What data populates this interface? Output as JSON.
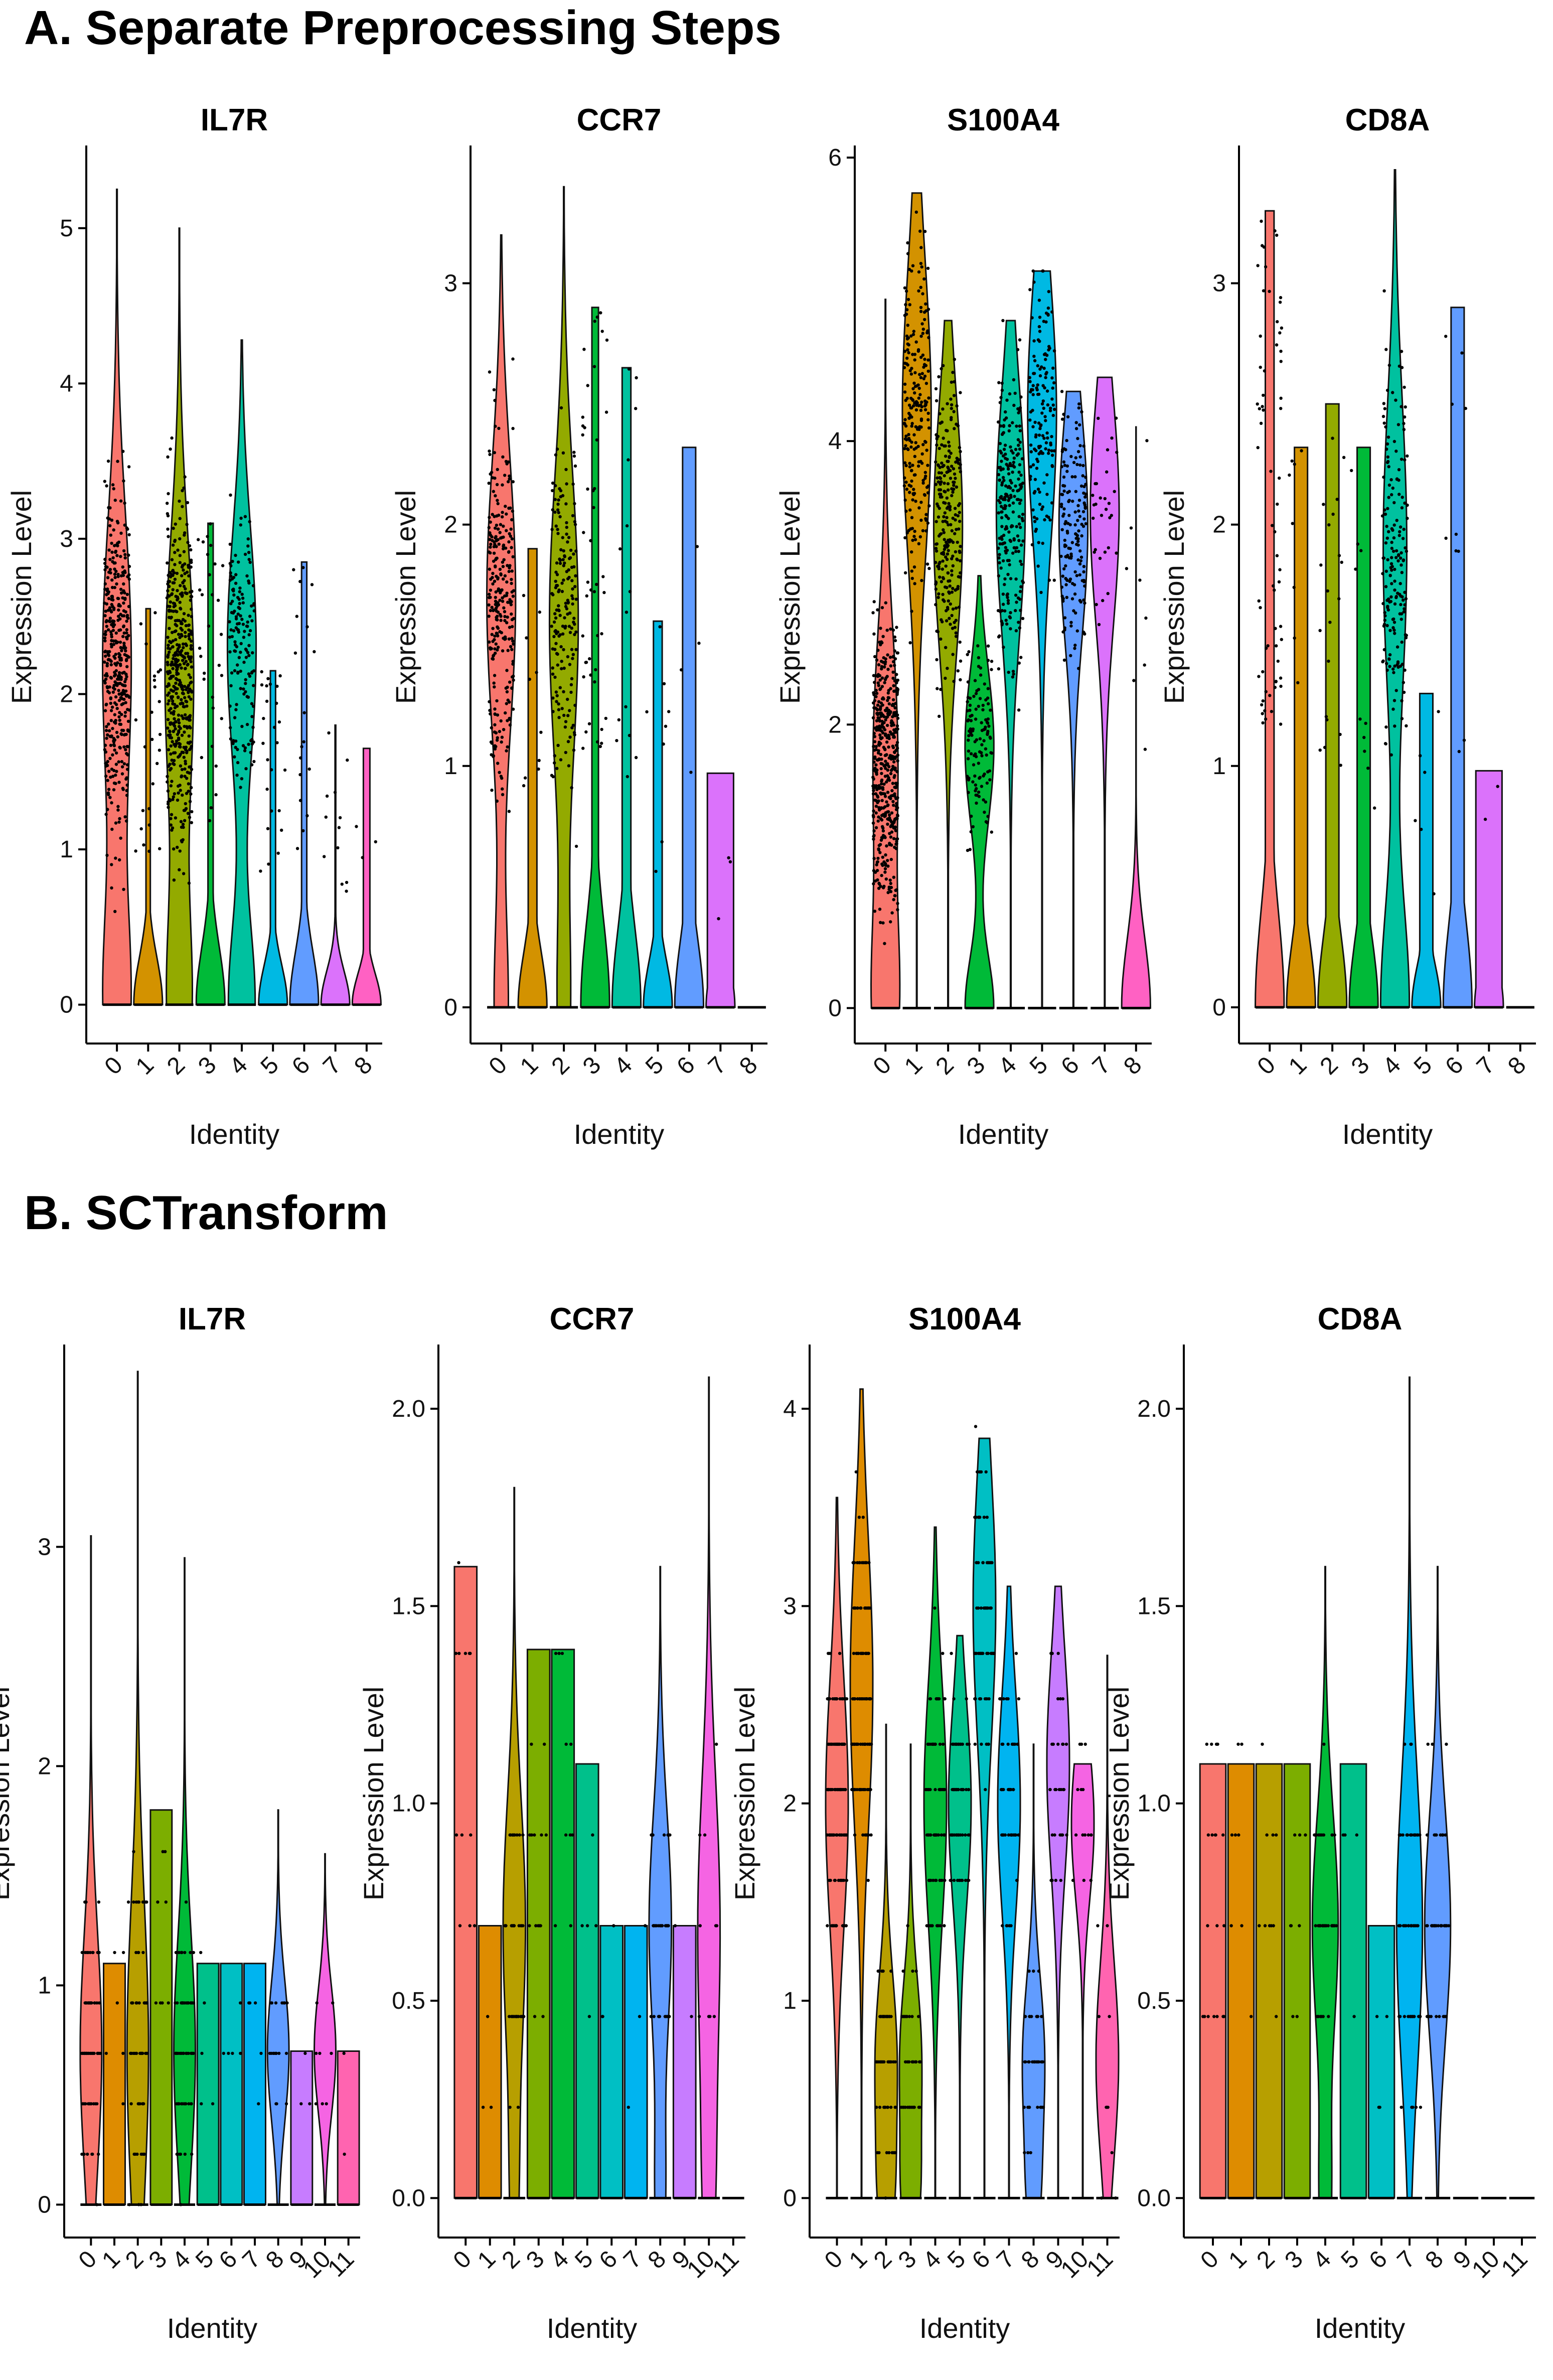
{
  "sections": [
    {
      "id": "A",
      "title": "A. Separate Preprocessing Steps"
    },
    {
      "id": "B",
      "title": "B. SCTransform"
    }
  ],
  "cluster_colors_A": [
    "#F8766D",
    "#D39200",
    "#93AA00",
    "#00BA38",
    "#00C19F",
    "#00B9E3",
    "#619CFF",
    "#DB72FB",
    "#FF61C3"
  ],
  "cluster_colors_B": [
    "#F8766D",
    "#DE8C00",
    "#B79F00",
    "#7CAE00",
    "#00BA38",
    "#00C08B",
    "#00BFC4",
    "#00B4F0",
    "#619CFF",
    "#C77CFF",
    "#F564E3",
    "#FF64B0"
  ],
  "chart_data": [
    {
      "type": "violin",
      "section": "A",
      "title": "IL7R",
      "xlabel": "Identity",
      "ylabel": "Expression Level",
      "categories": [
        "0",
        "1",
        "2",
        "3",
        "4",
        "5",
        "6",
        "7",
        "8"
      ],
      "ylim": [
        -0.25,
        5.5
      ],
      "yticks": [
        0,
        1,
        2,
        3,
        4,
        5
      ],
      "max": [
        5.25,
        2.55,
        5.0,
        3.1,
        4.28,
        2.15,
        2.85,
        1.8,
        1.65
      ],
      "peak": [
        2.2,
        0,
        2.1,
        0,
        2.3,
        0,
        0,
        0,
        0
      ],
      "density_bump": [
        0.42,
        0.06,
        0.38,
        0.05,
        0.42,
        0.05,
        0.05,
        0.35,
        0.04
      ],
      "cell_counts": [
        420,
        25,
        480,
        30,
        150,
        25,
        18,
        12,
        3
      ]
    },
    {
      "type": "violin",
      "section": "A",
      "title": "CCR7",
      "xlabel": "Identity",
      "ylabel": "Expression Level",
      "categories": [
        "0",
        "1",
        "2",
        "3",
        "4",
        "5",
        "6",
        "7",
        "8"
      ],
      "ylim": [
        -0.15,
        3.55
      ],
      "yticks": [
        0,
        1,
        2,
        3
      ],
      "max": [
        3.2,
        1.9,
        3.4,
        2.9,
        2.65,
        1.6,
        2.32,
        0.97,
        0
      ],
      "peak": [
        1.7,
        0,
        1.6,
        0,
        0,
        0,
        0,
        0,
        0
      ],
      "density_bump": [
        0.22,
        0.03,
        0.2,
        0.04,
        0.03,
        0.03,
        0.02,
        0.01,
        0
      ],
      "cell_counts": [
        280,
        10,
        180,
        45,
        14,
        8,
        4,
        3,
        0
      ]
    },
    {
      "type": "violin",
      "section": "A",
      "title": "S100A4",
      "xlabel": "Identity",
      "ylabel": "Expression Level",
      "categories": [
        "0",
        "1",
        "2",
        "3",
        "4",
        "5",
        "6",
        "7",
        "8"
      ],
      "ylim": [
        -0.25,
        6.05
      ],
      "yticks": [
        0,
        2,
        4,
        6
      ],
      "max": [
        5.0,
        5.75,
        4.85,
        3.05,
        4.85,
        5.2,
        4.35,
        4.45,
        4.1
      ],
      "peak": [
        1.75,
        4.2,
        3.4,
        1.85,
        3.5,
        4.2,
        3.4,
        3.5,
        0
      ],
      "density_bump": [
        0.45,
        0.0,
        0.0,
        0.45,
        0.0,
        0.0,
        0.0,
        0.0,
        1.1
      ],
      "cell_counts": [
        480,
        240,
        260,
        120,
        240,
        150,
        160,
        30,
        8
      ]
    },
    {
      "type": "violin",
      "section": "A",
      "title": "CD8A",
      "xlabel": "Identity",
      "ylabel": "Expression Level",
      "categories": [
        "0",
        "1",
        "2",
        "3",
        "4",
        "5",
        "6",
        "7",
        "8"
      ],
      "ylim": [
        -0.15,
        3.55
      ],
      "yticks": [
        0,
        1,
        2,
        3
      ],
      "max": [
        3.3,
        2.32,
        2.5,
        2.32,
        3.47,
        1.3,
        2.9,
        0.98,
        0
      ],
      "peak": [
        0,
        0,
        0,
        0,
        1.9,
        0,
        0,
        0,
        0
      ],
      "density_bump": [
        0.03,
        0.02,
        0.02,
        0.02,
        0.55,
        0.02,
        0.02,
        0.01,
        0
      ],
      "cell_counts": [
        65,
        8,
        20,
        10,
        180,
        6,
        10,
        2,
        0
      ]
    },
    {
      "type": "violin",
      "section": "B",
      "title": "IL7R",
      "xlabel": "Identity",
      "ylabel": "Expression Level",
      "categories": [
        "0",
        "1",
        "2",
        "3",
        "4",
        "5",
        "6",
        "7",
        "8",
        "9",
        "10",
        "11"
      ],
      "ylim": [
        -0.15,
        3.9
      ],
      "yticks": [
        0,
        1,
        2,
        3
      ],
      "max": [
        3.05,
        1.1,
        3.8,
        1.8,
        2.95,
        1.1,
        1.1,
        1.1,
        1.8,
        0.7,
        1.6,
        0.7
      ],
      "peak": [
        0.7,
        0,
        0.7,
        0,
        0.7,
        0,
        0,
        0,
        0.7,
        0,
        0.7,
        0
      ],
      "density_bump": [
        0.0,
        0.0,
        0.0,
        0.0,
        0.0,
        0.0,
        0.0,
        0.0,
        0.0,
        0.0,
        0.0,
        0.0
      ],
      "cell_counts": [
        80,
        6,
        60,
        8,
        70,
        5,
        5,
        5,
        20,
        3,
        8,
        2
      ]
    },
    {
      "type": "violin",
      "section": "B",
      "title": "CCR7",
      "xlabel": "Identity",
      "ylabel": "Expression Level",
      "categories": [
        "0",
        "1",
        "2",
        "3",
        "4",
        "5",
        "6",
        "7",
        "8",
        "9",
        "10",
        "11"
      ],
      "ylim": [
        -0.1,
        2.15
      ],
      "yticks": [
        0.0,
        0.5,
        1.0,
        1.5,
        2.0
      ],
      "yticklabels": [
        "0.0",
        "0.5",
        "1.0",
        "1.5",
        "2.0"
      ],
      "max": [
        1.6,
        0.69,
        1.8,
        1.39,
        1.39,
        1.1,
        0.69,
        0.69,
        1.6,
        0.69,
        2.08,
        0
      ],
      "peak": [
        0,
        0,
        0.69,
        0,
        0,
        0,
        0,
        0,
        0.69,
        0,
        0.69,
        0
      ],
      "density_bump": [
        0.0,
        0.0,
        0.15,
        0.0,
        0.0,
        0.0,
        0.0,
        0.0,
        0.2,
        0.0,
        0.2,
        0.0
      ],
      "cell_counts": [
        12,
        3,
        40,
        14,
        10,
        5,
        3,
        3,
        35,
        2,
        10,
        0
      ]
    },
    {
      "type": "violin",
      "section": "B",
      "title": "S100A4",
      "xlabel": "Identity",
      "ylabel": "Expression Level",
      "categories": [
        "0",
        "1",
        "2",
        "3",
        "4",
        "5",
        "6",
        "7",
        "8",
        "9",
        "10",
        "11"
      ],
      "ylim": [
        -0.2,
        4.3
      ],
      "yticks": [
        0,
        1,
        2,
        3,
        4
      ],
      "max": [
        3.55,
        4.1,
        2.4,
        2.3,
        3.4,
        2.85,
        3.85,
        3.1,
        2.3,
        3.1,
        2.2,
        2.75
      ],
      "peak": [
        2.0,
        2.6,
        0.7,
        0.7,
        2.0,
        2.0,
        3.0,
        2.0,
        0.7,
        2.2,
        1.9,
        0.7
      ],
      "density_bump": [
        0.0,
        0.0,
        0.25,
        0.3,
        0.0,
        0.0,
        0.0,
        0.0,
        0.2,
        0.0,
        0.0,
        0.0
      ],
      "cell_counts": [
        120,
        120,
        60,
        40,
        80,
        60,
        70,
        50,
        40,
        30,
        15,
        10
      ]
    },
    {
      "type": "violin",
      "section": "B",
      "title": "CD8A",
      "xlabel": "Identity",
      "ylabel": "Expression Level",
      "categories": [
        "0",
        "1",
        "2",
        "3",
        "4",
        "5",
        "6",
        "7",
        "8",
        "9",
        "10",
        "11"
      ],
      "ylim": [
        -0.1,
        2.15
      ],
      "yticks": [
        0.0,
        0.5,
        1.0,
        1.5,
        2.0
      ],
      "yticklabels": [
        "0.0",
        "0.5",
        "1.0",
        "1.5",
        "2.0"
      ],
      "max": [
        1.1,
        1.1,
        1.1,
        1.1,
        1.6,
        1.1,
        0.69,
        2.08,
        1.6,
        0,
        0,
        0
      ],
      "peak": [
        0,
        0,
        0,
        0,
        0.69,
        0,
        0,
        0.69,
        0.69,
        0,
        0,
        0
      ],
      "density_bump": [
        0.0,
        0.0,
        0.0,
        0.0,
        0.2,
        0.0,
        0.0,
        0.0,
        0.0,
        0.0,
        0.0,
        0.0
      ],
      "cell_counts": [
        20,
        8,
        10,
        8,
        40,
        4,
        4,
        55,
        45,
        0,
        0,
        0
      ]
    }
  ]
}
